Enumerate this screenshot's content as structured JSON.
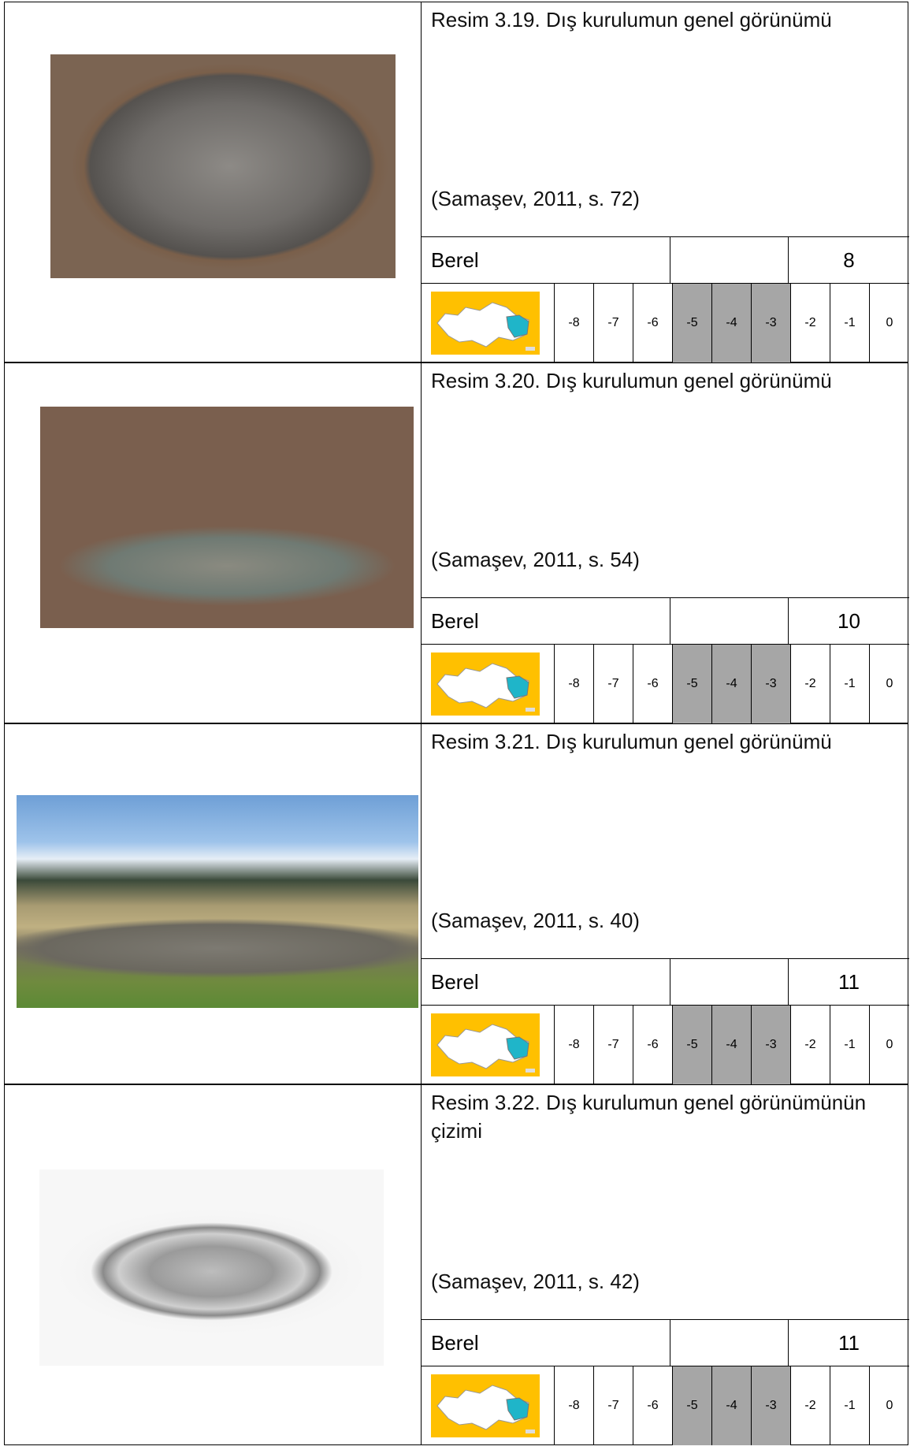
{
  "entries": [
    {
      "caption": "Resim 3.19. Dış kurulumun genel görünümü",
      "source": "(Samaşev, 2011, s. 72)",
      "place": "Berel",
      "number": "8"
    },
    {
      "caption": "Resim 3.20. Dış kurulumun genel görünümü",
      "source": "(Samaşev, 2011, s. 54)",
      "place": "Berel",
      "number": "10"
    },
    {
      "caption": "Resim 3.21. Dış kurulumun genel görünümü",
      "source": "(Samaşev, 2011, s. 40)",
      "place": "Berel",
      "number": "11"
    },
    {
      "caption": "Resim 3.22. Dış kurulumun genel görünümünün çizimi",
      "source": "(Samaşev, 2011, s. 42)",
      "place": "Berel",
      "number": "11"
    }
  ],
  "timeline": [
    -8,
    -7,
    -6,
    -5,
    -4,
    -3,
    -2,
    -1,
    0
  ]
}
